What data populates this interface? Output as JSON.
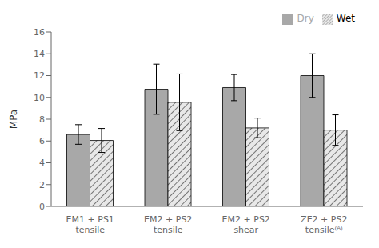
{
  "chart_data": {
    "type": "bar",
    "categories": [
      "EM1 + PS1\ntensile",
      "EM2 + PS2\ntensile",
      "EM2 + PS2\nshear",
      "ZE2 + PS2\ntensile⁽ᴬ⁾"
    ],
    "series": [
      {
        "name": "Dry",
        "color": "#a8a8a8",
        "values": [
          6.6,
          10.75,
          10.9,
          12.0
        ],
        "errors": [
          0.9,
          2.3,
          1.2,
          2.0
        ]
      },
      {
        "name": "Wet",
        "color": "#e8e8e8",
        "values": [
          6.05,
          9.55,
          7.2,
          7.0
        ],
        "errors": [
          1.1,
          2.6,
          0.9,
          1.4
        ]
      }
    ],
    "ylabel": "MPa",
    "ylim": [
      0,
      16
    ],
    "yticks": [
      0,
      2,
      4,
      6,
      8,
      10,
      12,
      14,
      16
    ],
    "legend": "upper right",
    "grid": false
  }
}
